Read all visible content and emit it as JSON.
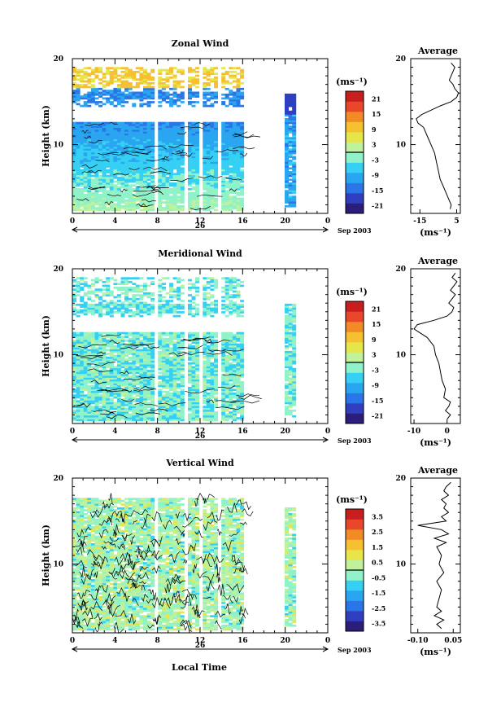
{
  "chart_data": [
    {
      "type": "heatmap",
      "id": "zonal",
      "title": "Zonal Wind",
      "ylabel": "Height (km)",
      "x_ticks": [
        "0",
        "4",
        "8",
        "12",
        "16",
        "20",
        "0"
      ],
      "y_ticks": [
        "20",
        "10"
      ],
      "xlim": [
        0,
        24
      ],
      "ylim": [
        2,
        20
      ],
      "date_label": "26",
      "date_suffix": "Sep 2003",
      "colorbar": {
        "unit": "(ms⁻¹)",
        "ticks": [
          "21",
          "15",
          "9",
          "3",
          "-3",
          "-9",
          "-15",
          "-21"
        ],
        "range": [
          -24,
          24
        ]
      },
      "data_gaps_hours": [
        [
          7.7,
          8.1
        ],
        [
          10.6,
          11.0
        ],
        [
          11.9,
          12.2
        ],
        [
          12.8,
          13.1
        ],
        [
          13.8,
          14.1
        ],
        [
          16.0,
          20.1
        ],
        [
          21.0,
          24.0
        ]
      ],
      "profile": {
        "title": "Average",
        "xticks": [
          "-15",
          "5"
        ],
        "xunit": "(ms⁻¹)",
        "xlim": [
          -20,
          7
        ],
        "heights_km": [
          2.5,
          3,
          3.5,
          4,
          4.5,
          5,
          6,
          7,
          8,
          9,
          10,
          11,
          12,
          12.5,
          13,
          13.5,
          14,
          14.5,
          15,
          15.5,
          16,
          16.5,
          17,
          17.5,
          18,
          18.5,
          19,
          19.5
        ],
        "values": [
          1.5,
          2,
          1,
          0,
          -1,
          -2,
          -4,
          -5,
          -6,
          -7,
          -9,
          -11,
          -13,
          -16,
          -17,
          -14,
          -9,
          -4,
          2,
          5,
          6,
          4,
          3,
          1,
          2,
          3,
          4,
          2
        ]
      }
    },
    {
      "type": "heatmap",
      "id": "meridional",
      "title": "Meridional Wind",
      "ylabel": "Height (km)",
      "x_ticks": [
        "0",
        "4",
        "8",
        "12",
        "16",
        "20",
        "0"
      ],
      "y_ticks": [
        "20",
        "10"
      ],
      "xlim": [
        0,
        24
      ],
      "ylim": [
        2,
        20
      ],
      "date_label": "26",
      "date_suffix": "Sep 2003",
      "colorbar": {
        "unit": "(ms⁻¹)",
        "ticks": [
          "21",
          "15",
          "9",
          "3",
          "-3",
          "-9",
          "-15",
          "-21"
        ],
        "range": [
          -24,
          24
        ]
      },
      "data_gaps_hours": [
        [
          7.7,
          8.1
        ],
        [
          10.6,
          11.0
        ],
        [
          11.9,
          12.2
        ],
        [
          12.8,
          13.1
        ],
        [
          13.8,
          14.1
        ],
        [
          16.0,
          20.1
        ],
        [
          21.0,
          24.0
        ]
      ],
      "profile": {
        "title": "Average",
        "xticks": [
          "-10",
          "0"
        ],
        "xunit": "(ms⁻¹)",
        "xlim": [
          -11,
          4
        ],
        "heights_km": [
          2.5,
          3,
          3.5,
          4,
          4.5,
          5,
          6,
          7,
          8,
          9,
          10,
          11,
          12,
          12.5,
          13,
          13.5,
          14,
          14.5,
          15,
          15.5,
          16,
          16.5,
          17,
          17.5,
          18,
          18.5,
          19,
          19.5
        ],
        "values": [
          0,
          1,
          -0.5,
          0.5,
          1,
          -1,
          -0.5,
          -1.5,
          -2,
          -2.5,
          -3.5,
          -4,
          -6,
          -8,
          -10,
          -9,
          -4,
          0,
          1.5,
          2,
          0.5,
          1.5,
          2.5,
          1,
          2,
          3,
          1.5,
          2.5
        ]
      }
    },
    {
      "type": "heatmap",
      "id": "vertical",
      "title": "Vertical Wind",
      "ylabel": "Height (km)",
      "xlabel": "Local Time",
      "x_ticks": [
        "0",
        "4",
        "8",
        "12",
        "16",
        "20",
        "0"
      ],
      "y_ticks": [
        "20",
        "10"
      ],
      "xlim": [
        0,
        24
      ],
      "ylim": [
        2,
        20
      ],
      "date_label": "26",
      "date_suffix": "Sep 2003",
      "colorbar": {
        "unit": "(ms⁻¹)",
        "ticks": [
          "3.5",
          "2.5",
          "1.5",
          "0.5",
          "-0.5",
          "-1.5",
          "-2.5",
          "-3.5"
        ],
        "range": [
          -4,
          4
        ]
      },
      "data_gaps_hours": [
        [
          7.7,
          8.1
        ],
        [
          10.6,
          11.0
        ],
        [
          11.9,
          12.2
        ],
        [
          12.8,
          13.1
        ],
        [
          13.8,
          14.1
        ],
        [
          16.0,
          20.1
        ],
        [
          21.0,
          24.0
        ]
      ],
      "profile": {
        "title": "Average",
        "xticks": [
          "-0.10",
          "0.05"
        ],
        "xunit": "(ms⁻¹)",
        "xlim": [
          -0.13,
          0.08
        ],
        "heights_km": [
          2.5,
          3,
          3.5,
          4,
          4.5,
          5,
          6,
          7,
          8,
          9,
          10,
          11,
          12,
          12.5,
          13,
          13.5,
          14,
          14.5,
          15,
          15.5,
          16,
          16.5,
          17,
          17.5,
          18,
          18.5,
          19,
          19.5
        ],
        "values": [
          0.0,
          -0.02,
          0.01,
          -0.03,
          0.0,
          -0.02,
          -0.01,
          0.0,
          -0.02,
          0.01,
          -0.01,
          0.0,
          -0.02,
          0.02,
          -0.03,
          0.03,
          0.0,
          -0.1,
          0.02,
          0.0,
          0.03,
          0.01,
          0.02,
          0.0,
          0.03,
          0.01,
          0.02,
          0.04
        ]
      }
    }
  ],
  "figure": {
    "xlabel": "Local Time"
  },
  "colors": {
    "scale": [
      "#2a1e7a",
      "#2f3fc0",
      "#2a76e8",
      "#2aa6f0",
      "#35d0f4",
      "#8ff2c8",
      "#bff29a",
      "#e6e64a",
      "#f6c030",
      "#f28a25",
      "#e8472a",
      "#c81e1e"
    ],
    "contour": "#000000",
    "axis": "#000000"
  }
}
